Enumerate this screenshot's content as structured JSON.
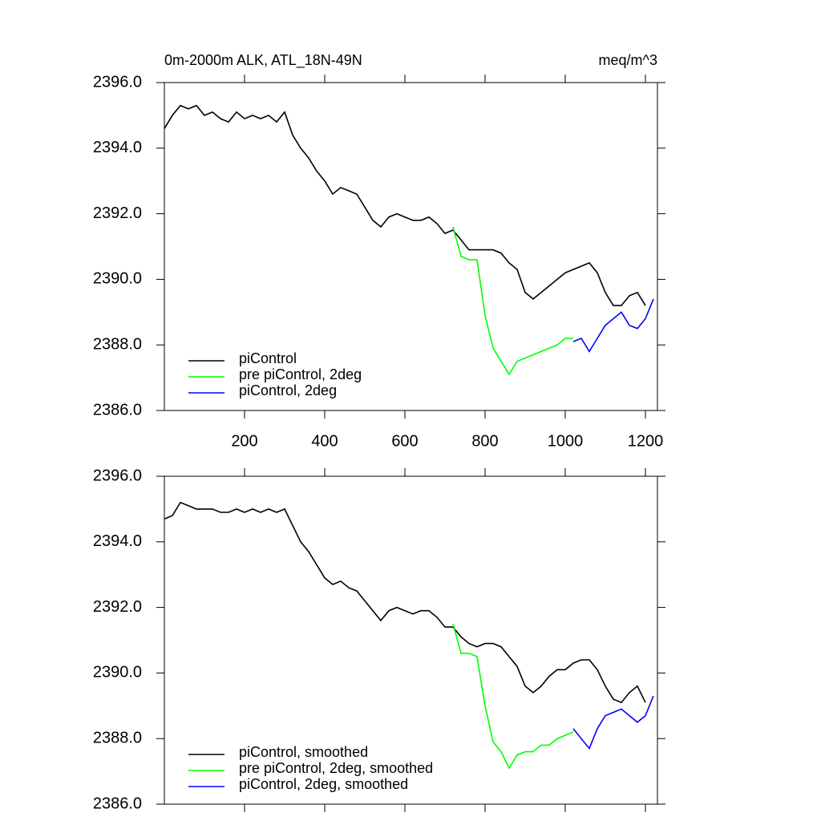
{
  "chart_data": [
    {
      "type": "line",
      "title": "0m-2000m ALK, ATL_18N-49N",
      "units": "meq/m^3",
      "xlim": [
        0,
        1230
      ],
      "xticks": [
        200,
        400,
        600,
        800,
        1000,
        1200
      ],
      "show_xtick_labels": true,
      "ylim": [
        2386,
        2396
      ],
      "yticks": [
        {
          "value": 2386,
          "label": "2386.0"
        },
        {
          "value": 2388,
          "label": "2388.0"
        },
        {
          "value": 2390,
          "label": "2390.0"
        },
        {
          "value": 2392,
          "label": "2392.0"
        },
        {
          "value": 2394,
          "label": "2394.0"
        },
        {
          "value": 2396,
          "label": "2396.0"
        }
      ],
      "legend": "lower-left",
      "series": [
        {
          "name": "piControl",
          "color": "#000000",
          "x": [
            0,
            20,
            40,
            60,
            80,
            100,
            120,
            140,
            160,
            180,
            200,
            220,
            240,
            260,
            280,
            300,
            320,
            340,
            360,
            380,
            400,
            420,
            440,
            460,
            480,
            500,
            520,
            540,
            560,
            580,
            600,
            620,
            640,
            660,
            680,
            700,
            720,
            740,
            760,
            780,
            800,
            820,
            840,
            860,
            880,
            900,
            920,
            940,
            960,
            980,
            1000,
            1020,
            1040,
            1060,
            1080,
            1100,
            1120,
            1140,
            1160,
            1180,
            1200
          ],
          "values": [
            2394.6,
            2395.0,
            2395.3,
            2395.2,
            2395.3,
            2395.0,
            2395.1,
            2394.9,
            2394.8,
            2395.1,
            2394.9,
            2395.0,
            2394.9,
            2395.0,
            2394.8,
            2395.1,
            2394.4,
            2394.0,
            2393.7,
            2393.3,
            2393.0,
            2392.6,
            2392.8,
            2392.7,
            2392.6,
            2392.2,
            2391.8,
            2391.6,
            2391.9,
            2392.0,
            2391.9,
            2391.8,
            2391.8,
            2391.9,
            2391.7,
            2391.4,
            2391.5,
            2391.2,
            2390.9,
            2390.9,
            2390.9,
            2390.9,
            2390.8,
            2390.5,
            2390.3,
            2389.6,
            2389.4,
            2389.6,
            2389.8,
            2390.0,
            2390.2,
            2390.3,
            2390.4,
            2390.5,
            2390.2,
            2389.6,
            2389.2,
            2389.2,
            2389.5,
            2389.6,
            2389.2
          ]
        },
        {
          "name": "pre piControl, 2deg",
          "color": "#00ff00",
          "x": [
            720,
            740,
            760,
            780,
            800,
            820,
            840,
            860,
            880,
            900,
            920,
            940,
            960,
            980,
            1000,
            1020
          ],
          "values": [
            2391.6,
            2390.7,
            2390.6,
            2390.6,
            2388.9,
            2387.9,
            2387.5,
            2387.1,
            2387.5,
            2387.6,
            2387.7,
            2387.8,
            2387.9,
            2388.0,
            2388.2,
            2388.2
          ]
        },
        {
          "name": "piControl, 2deg",
          "color": "#0000ff",
          "x": [
            1020,
            1040,
            1060,
            1080,
            1100,
            1120,
            1140,
            1160,
            1180,
            1200,
            1220
          ],
          "values": [
            2388.1,
            2388.2,
            2387.8,
            2388.2,
            2388.6,
            2388.8,
            2389.0,
            2388.6,
            2388.5,
            2388.8,
            2389.4
          ]
        }
      ]
    },
    {
      "type": "line",
      "xlim": [
        0,
        1230
      ],
      "xticks": [
        200,
        400,
        600,
        800,
        1000,
        1200
      ],
      "show_xtick_labels": false,
      "ylim": [
        2386,
        2396
      ],
      "yticks": [
        {
          "value": 2386,
          "label": "2386.0"
        },
        {
          "value": 2388,
          "label": "2388.0"
        },
        {
          "value": 2390,
          "label": "2390.0"
        },
        {
          "value": 2392,
          "label": "2392.0"
        },
        {
          "value": 2394,
          "label": "2394.0"
        },
        {
          "value": 2396,
          "label": "2396.0"
        }
      ],
      "legend": "lower-left",
      "series": [
        {
          "name": "piControl, smoothed",
          "color": "#000000",
          "x": [
            0,
            20,
            40,
            60,
            80,
            100,
            120,
            140,
            160,
            180,
            200,
            220,
            240,
            260,
            280,
            300,
            320,
            340,
            360,
            380,
            400,
            420,
            440,
            460,
            480,
            500,
            520,
            540,
            560,
            580,
            600,
            620,
            640,
            660,
            680,
            700,
            720,
            740,
            760,
            780,
            800,
            820,
            840,
            860,
            880,
            900,
            920,
            940,
            960,
            980,
            1000,
            1020,
            1040,
            1060,
            1080,
            1100,
            1120,
            1140,
            1160,
            1180,
            1200
          ],
          "values": [
            2394.7,
            2394.8,
            2395.2,
            2395.1,
            2395.0,
            2395.0,
            2395.0,
            2394.9,
            2394.9,
            2395.0,
            2394.9,
            2395.0,
            2394.9,
            2395.0,
            2394.9,
            2395.0,
            2394.5,
            2394.0,
            2393.7,
            2393.3,
            2392.9,
            2392.7,
            2392.8,
            2392.6,
            2392.5,
            2392.2,
            2391.9,
            2391.6,
            2391.9,
            2392.0,
            2391.9,
            2391.8,
            2391.9,
            2391.9,
            2391.7,
            2391.4,
            2391.4,
            2391.1,
            2390.9,
            2390.8,
            2390.9,
            2390.9,
            2390.8,
            2390.5,
            2390.2,
            2389.6,
            2389.4,
            2389.6,
            2389.9,
            2390.1,
            2390.1,
            2390.3,
            2390.4,
            2390.4,
            2390.1,
            2389.6,
            2389.2,
            2389.1,
            2389.4,
            2389.6,
            2389.1
          ]
        },
        {
          "name": "pre piControl, 2deg, smoothed",
          "color": "#00ff00",
          "x": [
            720,
            740,
            760,
            780,
            800,
            820,
            840,
            860,
            880,
            900,
            920,
            940,
            960,
            980,
            1000,
            1020
          ],
          "values": [
            2391.5,
            2390.6,
            2390.6,
            2390.5,
            2389.0,
            2387.9,
            2387.6,
            2387.1,
            2387.5,
            2387.6,
            2387.6,
            2387.8,
            2387.8,
            2388.0,
            2388.1,
            2388.2
          ]
        },
        {
          "name": "piControl, 2deg, smoothed",
          "color": "#0000ff",
          "x": [
            1020,
            1040,
            1060,
            1080,
            1100,
            1120,
            1140,
            1160,
            1180,
            1200,
            1220
          ],
          "values": [
            2388.3,
            2388.0,
            2387.7,
            2388.3,
            2388.7,
            2388.8,
            2388.9,
            2388.7,
            2388.5,
            2388.7,
            2389.3
          ]
        }
      ]
    }
  ]
}
